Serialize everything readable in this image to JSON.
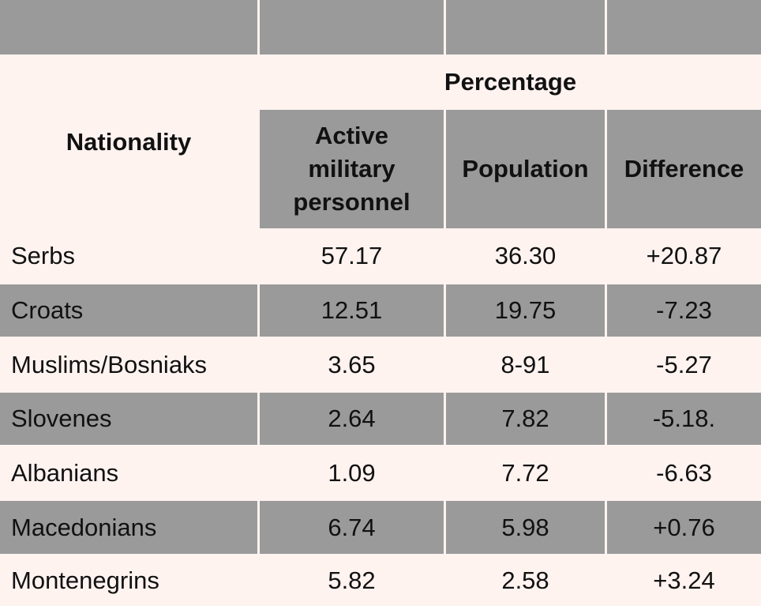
{
  "table": {
    "header": {
      "nationality": "Nationality",
      "percentage": "Percentage",
      "active_military": "Active military personnel",
      "population": "Population",
      "difference": "Difference"
    },
    "rows": [
      {
        "nationality": "Serbs",
        "active": "57.17",
        "population": "36.30",
        "difference": "+20.87"
      },
      {
        "nationality": "Croats",
        "active": "12.51",
        "population": "19.75",
        "difference": "-7.23"
      },
      {
        "nationality": "Muslims/Bosniaks",
        "active": "3.65",
        "population": "8-91",
        "difference": "-5.27"
      },
      {
        "nationality": "Slovenes",
        "active": "2.64",
        "population": "7.82",
        "difference": "-5.18."
      },
      {
        "nationality": "Albanians",
        "active": "1.09",
        "population": "7.72",
        "difference": "-6.63"
      },
      {
        "nationality": "Macedonians",
        "active": "6.74",
        "population": "5.98",
        "difference": "+0.76"
      },
      {
        "nationality": "Montenegrins",
        "active": "5.82",
        "population": "2.58",
        "difference": "+3.24"
      }
    ]
  },
  "colors": {
    "background": "#fff3f0",
    "gray_band": "#9a9a9a",
    "text": "#111111"
  }
}
